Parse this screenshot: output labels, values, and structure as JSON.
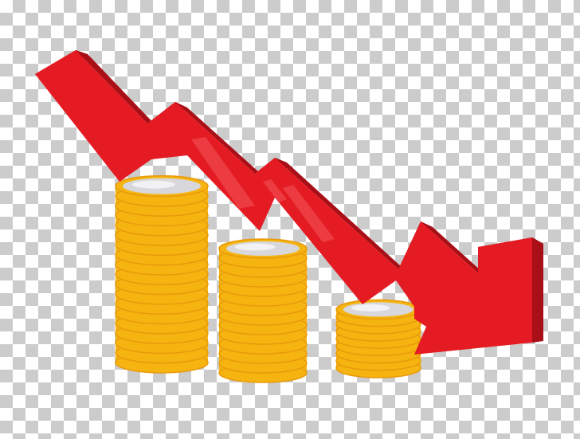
{
  "illustration": {
    "subject": "declining-coins-arrow",
    "colors": {
      "coin_gold": "#F5B40F",
      "coin_gold_dark": "#E89A0C",
      "coin_gold_light": "#FFD24A",
      "coin_top_silver": "#D8D8DC",
      "coin_top_silver_light": "#F2F2F4",
      "arrow_red": "#E51B24",
      "arrow_red_dark": "#A80F16",
      "arrow_red_highlight": "#F0494F",
      "checker_light": "#FFFFFF",
      "checker_dark": "#CCCCCC"
    },
    "stacks": [
      {
        "name": "tall",
        "coin_count": 18
      },
      {
        "name": "medium",
        "coin_count": 13
      },
      {
        "name": "short",
        "coin_count": 8
      }
    ],
    "arrow_direction": "down-right"
  }
}
